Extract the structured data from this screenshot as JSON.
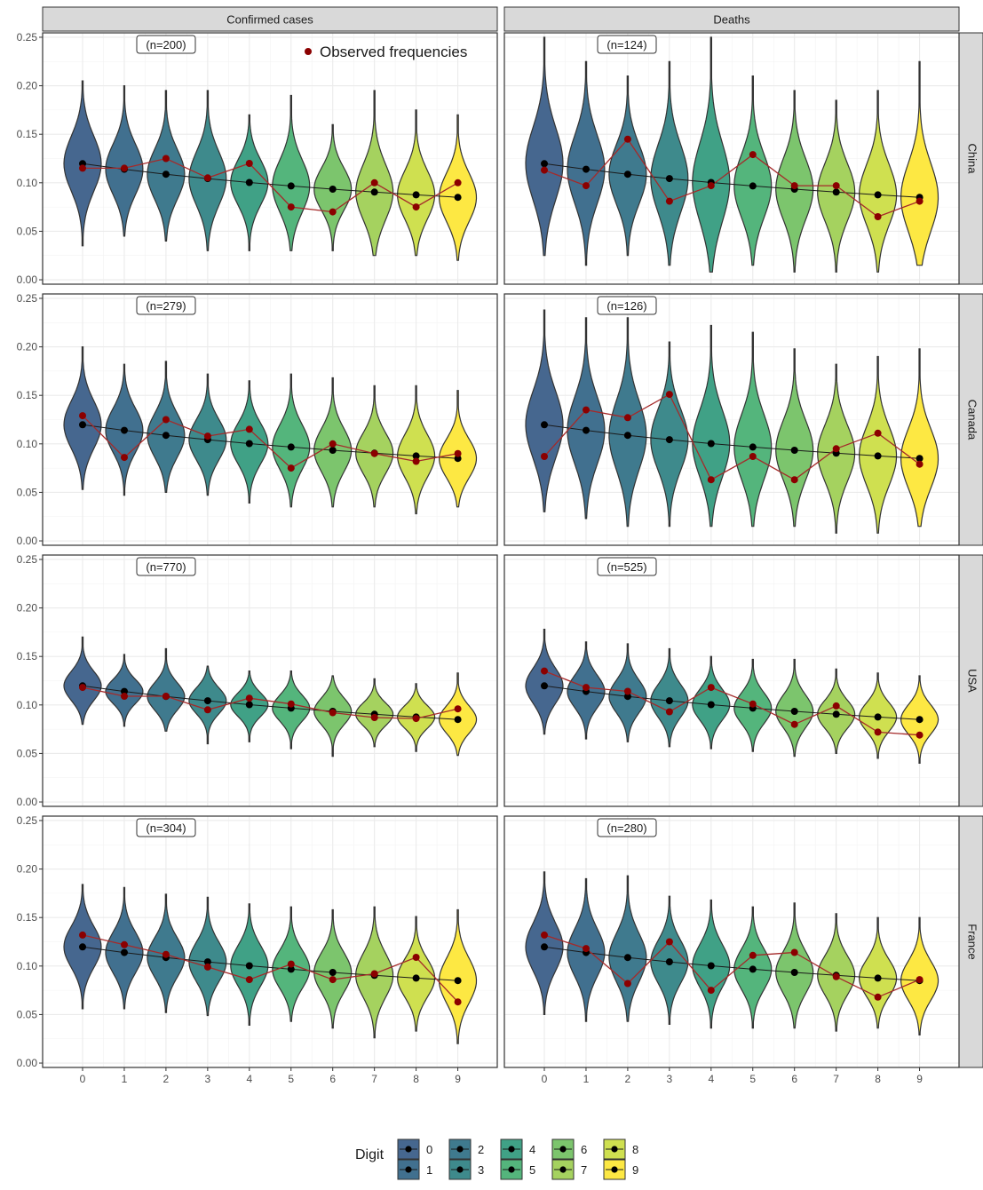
{
  "chart_data": {
    "type": "violin",
    "facet_cols": [
      "Confirmed cases",
      "Deaths"
    ],
    "facet_rows": [
      "China",
      "Canada",
      "USA",
      "France"
    ],
    "x_categories": [
      "0",
      "1",
      "2",
      "3",
      "4",
      "5",
      "6",
      "7",
      "8",
      "9"
    ],
    "y_ticks": [
      "0.00",
      "0.05",
      "0.10",
      "0.15",
      "0.20",
      "0.25"
    ],
    "ylim": [
      0,
      0.25
    ],
    "grid": true,
    "legend": {
      "title": "Digit",
      "entries": [
        "0",
        "1",
        "2",
        "3",
        "4",
        "5",
        "6",
        "7",
        "8",
        "9"
      ],
      "colors": [
        "#46678f",
        "#41708f",
        "#3f7a8e",
        "#3e8a8c",
        "#40a186",
        "#54b57c",
        "#7cc56d",
        "#a5d25f",
        "#cfe050",
        "#fde843"
      ],
      "position": "bottom"
    },
    "annotation_label": "Observed frequencies",
    "expected_series": [
      0.1197,
      0.1139,
      0.1088,
      0.1043,
      0.1003,
      0.0967,
      0.0934,
      0.0904,
      0.0876,
      0.085
    ],
    "panels": [
      {
        "row": "China",
        "col": "Confirmed cases",
        "n_label": "(n=200)",
        "observed": [
          0.115,
          0.115,
          0.125,
          0.105,
          0.12,
          0.075,
          0.07,
          0.1,
          0.075,
          0.1
        ],
        "ranges": [
          [
            0.035,
            0.205
          ],
          [
            0.045,
            0.2
          ],
          [
            0.04,
            0.195
          ],
          [
            0.03,
            0.195
          ],
          [
            0.03,
            0.17
          ],
          [
            0.03,
            0.19
          ],
          [
            0.03,
            0.16
          ],
          [
            0.025,
            0.195
          ],
          [
            0.025,
            0.175
          ],
          [
            0.02,
            0.17
          ]
        ]
      },
      {
        "row": "China",
        "col": "Deaths",
        "n_label": "(n=124)",
        "observed": [
          0.113,
          0.097,
          0.145,
          0.081,
          0.097,
          0.129,
          0.097,
          0.097,
          0.065,
          0.081
        ],
        "ranges": [
          [
            0.025,
            0.25
          ],
          [
            0.015,
            0.225
          ],
          [
            0.025,
            0.21
          ],
          [
            0.015,
            0.225
          ],
          [
            0.008,
            0.25
          ],
          [
            0.015,
            0.21
          ],
          [
            0.008,
            0.195
          ],
          [
            0.008,
            0.185
          ],
          [
            0.008,
            0.195
          ],
          [
            0.015,
            0.225
          ]
        ]
      },
      {
        "row": "Canada",
        "col": "Confirmed cases",
        "n_label": "(n=279)",
        "observed": [
          0.129,
          0.086,
          0.125,
          0.108,
          0.115,
          0.075,
          0.1,
          0.09,
          0.082,
          0.09
        ],
        "ranges": [
          [
            0.053,
            0.2
          ],
          [
            0.047,
            0.182
          ],
          [
            0.05,
            0.185
          ],
          [
            0.047,
            0.172
          ],
          [
            0.039,
            0.165
          ],
          [
            0.035,
            0.172
          ],
          [
            0.035,
            0.168
          ],
          [
            0.035,
            0.16
          ],
          [
            0.028,
            0.16
          ],
          [
            0.035,
            0.155
          ]
        ]
      },
      {
        "row": "Canada",
        "col": "Deaths",
        "n_label": "(n=126)",
        "observed": [
          0.087,
          0.135,
          0.127,
          0.151,
          0.063,
          0.087,
          0.063,
          0.095,
          0.111,
          0.079
        ],
        "ranges": [
          [
            0.03,
            0.238
          ],
          [
            0.023,
            0.23
          ],
          [
            0.015,
            0.23
          ],
          [
            0.015,
            0.205
          ],
          [
            0.015,
            0.222
          ],
          [
            0.015,
            0.215
          ],
          [
            0.015,
            0.198
          ],
          [
            0.008,
            0.182
          ],
          [
            0.008,
            0.19
          ],
          [
            0.015,
            0.198
          ]
        ]
      },
      {
        "row": "USA",
        "col": "Confirmed cases",
        "n_label": "(n=770)",
        "observed": [
          0.118,
          0.109,
          0.109,
          0.095,
          0.107,
          0.101,
          0.092,
          0.087,
          0.086,
          0.096
        ],
        "ranges": [
          [
            0.08,
            0.17
          ],
          [
            0.078,
            0.152
          ],
          [
            0.073,
            0.158
          ],
          [
            0.06,
            0.14
          ],
          [
            0.062,
            0.135
          ],
          [
            0.055,
            0.135
          ],
          [
            0.047,
            0.13
          ],
          [
            0.057,
            0.127
          ],
          [
            0.052,
            0.122
          ],
          [
            0.048,
            0.133
          ]
        ]
      },
      {
        "row": "USA",
        "col": "Deaths",
        "n_label": "(n=525)",
        "observed": [
          0.135,
          0.118,
          0.114,
          0.093,
          0.118,
          0.101,
          0.08,
          0.099,
          0.072,
          0.069
        ],
        "ranges": [
          [
            0.07,
            0.178
          ],
          [
            0.065,
            0.165
          ],
          [
            0.062,
            0.163
          ],
          [
            0.057,
            0.158
          ],
          [
            0.055,
            0.15
          ],
          [
            0.052,
            0.147
          ],
          [
            0.047,
            0.147
          ],
          [
            0.05,
            0.137
          ],
          [
            0.045,
            0.133
          ],
          [
            0.04,
            0.13
          ]
        ]
      },
      {
        "row": "France",
        "col": "Confirmed cases",
        "n_label": "(n=304)",
        "observed": [
          0.132,
          0.122,
          0.112,
          0.099,
          0.086,
          0.102,
          0.086,
          0.092,
          0.109,
          0.063
        ],
        "ranges": [
          [
            0.056,
            0.184
          ],
          [
            0.056,
            0.181
          ],
          [
            0.052,
            0.174
          ],
          [
            0.049,
            0.171
          ],
          [
            0.039,
            0.164
          ],
          [
            0.043,
            0.161
          ],
          [
            0.036,
            0.158
          ],
          [
            0.026,
            0.161
          ],
          [
            0.033,
            0.151
          ],
          [
            0.02,
            0.158
          ]
        ]
      },
      {
        "row": "France",
        "col": "Deaths",
        "n_label": "(n=280)",
        "observed": [
          0.132,
          0.118,
          0.082,
          0.125,
          0.075,
          0.111,
          0.114,
          0.089,
          0.068,
          0.086
        ],
        "ranges": [
          [
            0.05,
            0.197
          ],
          [
            0.043,
            0.19
          ],
          [
            0.043,
            0.193
          ],
          [
            0.04,
            0.172
          ],
          [
            0.036,
            0.168
          ],
          [
            0.036,
            0.161
          ],
          [
            0.036,
            0.165
          ],
          [
            0.033,
            0.154
          ],
          [
            0.036,
            0.15
          ],
          [
            0.029,
            0.15
          ]
        ]
      }
    ]
  }
}
